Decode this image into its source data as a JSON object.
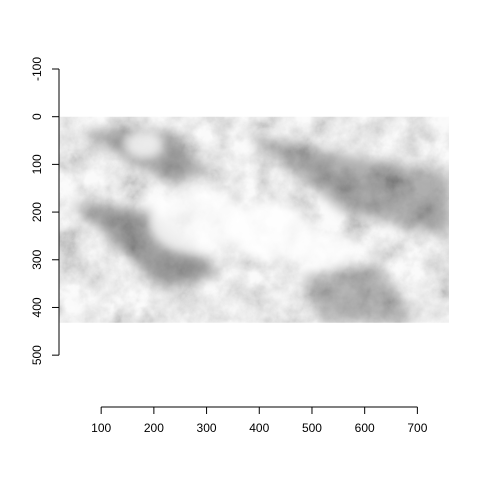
{
  "chart_data": {
    "type": "heatmap",
    "title": "",
    "xlabel": "",
    "ylabel": "",
    "xlim": [
      20,
      760
    ],
    "ylim": [
      550,
      -100
    ],
    "x_ticks": [
      100,
      200,
      300,
      400,
      500,
      600,
      700
    ],
    "y_ticks": [
      -100,
      0,
      100,
      200,
      300,
      400,
      500
    ],
    "image_extent": {
      "x": [
        0,
        760
      ],
      "y": [
        0,
        432
      ]
    },
    "colormap": "grayscale",
    "background_color": "#ffffff",
    "ink_color": "#000000"
  }
}
